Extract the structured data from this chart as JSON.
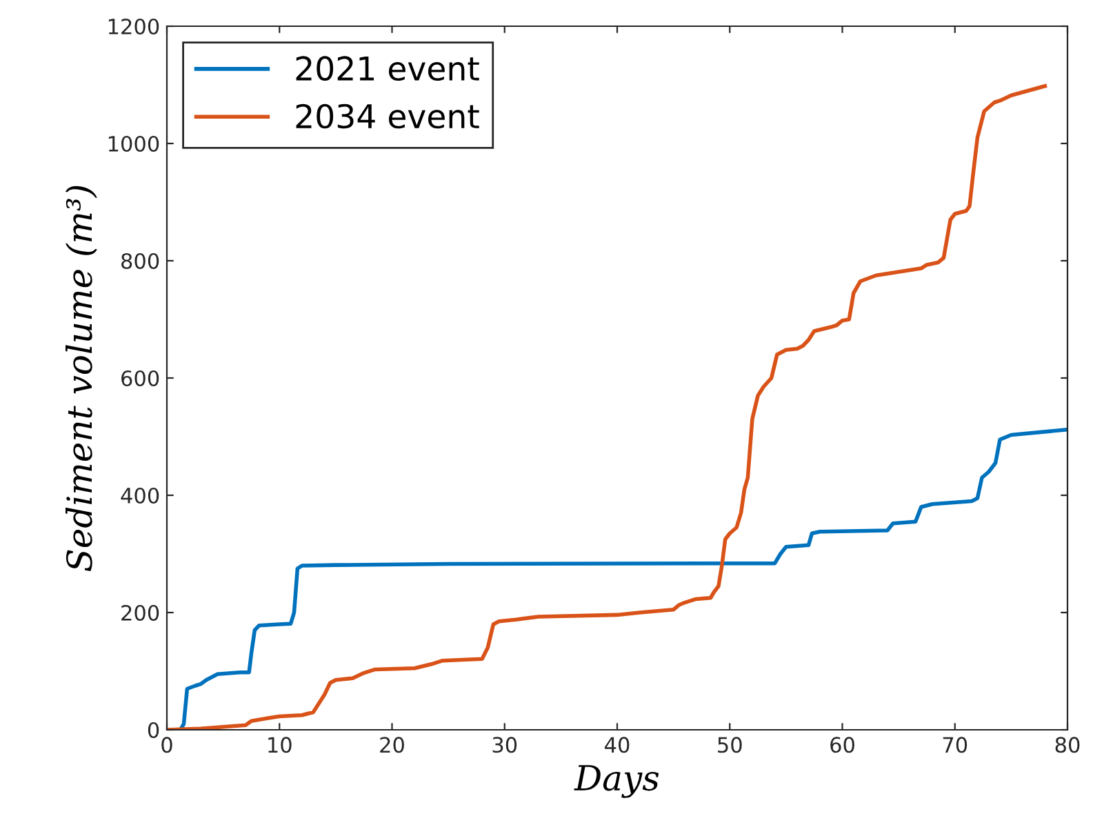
{
  "chart_data": {
    "type": "line",
    "xlabel": "Days",
    "ylabel": "Sediment volume (m³)",
    "xlim": [
      0,
      80
    ],
    "ylim": [
      0,
      1200
    ],
    "xticks": [
      0,
      10,
      20,
      30,
      40,
      50,
      60,
      70,
      80
    ],
    "yticks": [
      0,
      200,
      400,
      600,
      800,
      1000,
      1200
    ],
    "legend": "top left",
    "grid": false,
    "marker": "none",
    "line_style": "solid",
    "series": [
      {
        "name": "2021 event",
        "color": "#0072bd",
        "x": [
          0,
          1.2,
          1.5,
          1.8,
          2.5,
          3,
          3.5,
          4.5,
          6.5,
          7.3,
          7.5,
          7.8,
          8.2,
          10,
          11,
          11.3,
          11.6,
          12,
          15,
          25,
          54,
          54.5,
          55,
          57,
          57.3,
          58,
          64,
          64.5,
          66.5,
          67,
          68,
          71.5,
          72,
          72.4,
          73,
          73.6,
          74,
          75,
          80
        ],
        "values": [
          0,
          0,
          10,
          70,
          75,
          78,
          85,
          95,
          98,
          98,
          130,
          170,
          178,
          180,
          181,
          200,
          275,
          280,
          281,
          283,
          284,
          300,
          312,
          315,
          335,
          338,
          340,
          352,
          355,
          380,
          385,
          390,
          395,
          430,
          440,
          455,
          495,
          503,
          512
        ]
      },
      {
        "name": "2034 event",
        "color": "#d95319",
        "x": [
          0,
          3,
          5,
          7,
          7.5,
          9,
          10,
          12,
          13,
          13.5,
          14,
          14.5,
          15,
          16.5,
          17.5,
          18.5,
          22,
          23.5,
          24.5,
          28,
          28.5,
          29,
          29.5,
          31,
          33,
          40,
          42,
          45,
          45.5,
          46,
          47,
          48.3,
          48.6,
          49,
          49.3,
          49.6,
          50,
          50.6,
          51,
          51.3,
          51.6,
          52,
          52.5,
          53,
          53.7,
          54.2,
          55,
          56,
          56.5,
          57,
          57.5,
          59,
          59.5,
          60,
          60.6,
          61,
          61.6,
          63,
          67,
          67.5,
          68.5,
          69,
          69.6,
          70,
          71,
          71.3,
          71.6,
          72,
          72.6,
          73.5,
          74,
          75,
          78
        ],
        "values": [
          0,
          2,
          5,
          8,
          15,
          20,
          23,
          25,
          30,
          45,
          60,
          80,
          85,
          88,
          97,
          103,
          105,
          112,
          118,
          121,
          140,
          180,
          185,
          188,
          193,
          196,
          200,
          205,
          213,
          217,
          223,
          225,
          235,
          245,
          280,
          325,
          335,
          345,
          370,
          410,
          430,
          530,
          570,
          585,
          600,
          640,
          648,
          650,
          655,
          665,
          680,
          687,
          690,
          698,
          700,
          745,
          765,
          775,
          787,
          793,
          797,
          805,
          870,
          880,
          885,
          893,
          945,
          1010,
          1055,
          1070,
          1073,
          1082,
          1098
        ]
      }
    ]
  }
}
